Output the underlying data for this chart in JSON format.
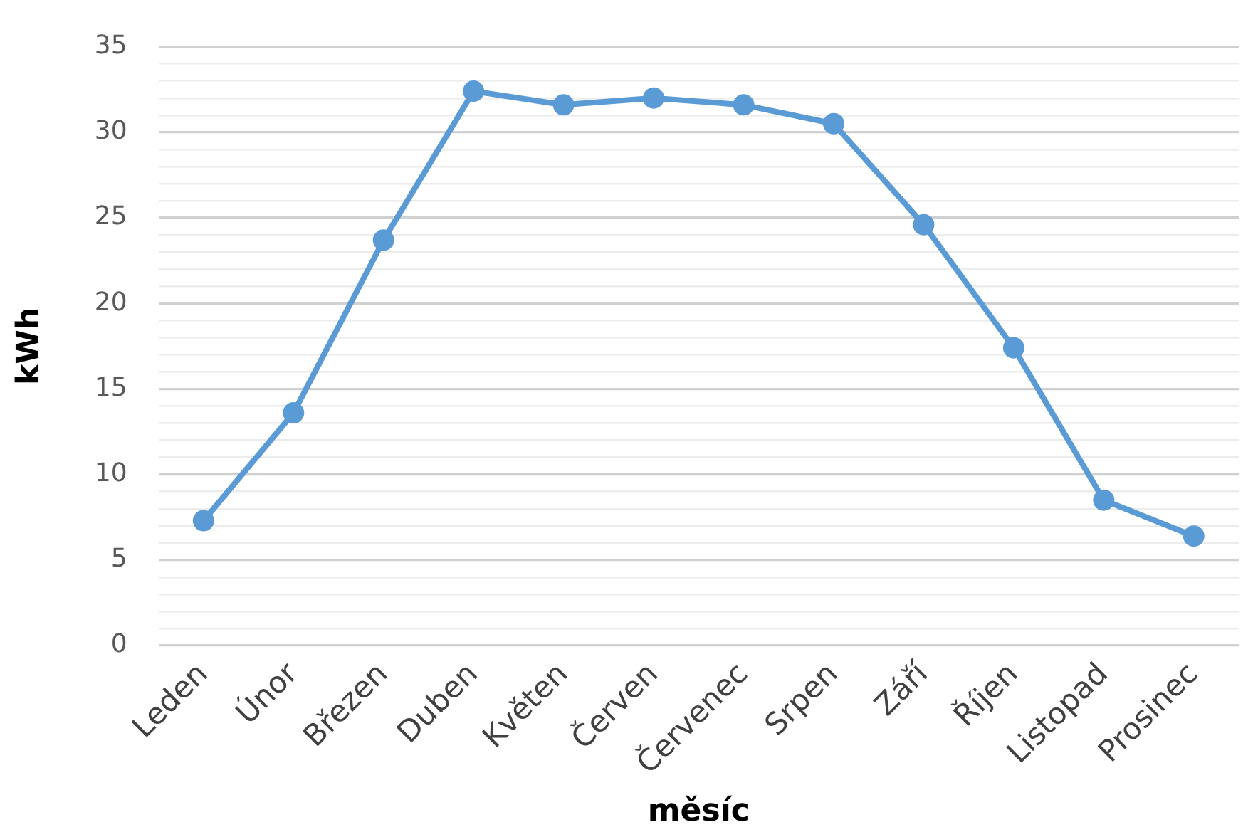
{
  "chart_data": {
    "type": "line",
    "xlabel": "měsíc",
    "ylabel": "kWh",
    "categories": [
      "Leden",
      "Únor",
      "Březen",
      "Duben",
      "Květen",
      "Červen",
      "Červenec",
      "Srpen",
      "Září",
      "Říjen",
      "Listopad",
      "Prosinec"
    ],
    "series": [
      {
        "color": "#5b9bd5",
        "values": [
          7.3,
          13.6,
          23.7,
          32.4,
          31.6,
          32.0,
          31.6,
          30.5,
          24.6,
          17.4,
          8.5,
          6.4
        ]
      }
    ],
    "ylim": [
      0,
      35
    ],
    "yticks": [
      0,
      {
        "value": 1,
        "label": null
      },
      {
        "value": 2,
        "label": null
      },
      {
        "value": 3,
        "label": null
      },
      {
        "value": 4,
        "label": null
      },
      5,
      {
        "value": 6,
        "label": null
      },
      {
        "value": 7,
        "label": null
      },
      {
        "value": 8,
        "label": null
      },
      {
        "value": 9,
        "label": null
      },
      10,
      {
        "value": 11,
        "label": null
      },
      {
        "value": 12,
        "label": null
      },
      {
        "value": 13,
        "label": null
      },
      {
        "value": 14,
        "label": null
      },
      15,
      {
        "value": 16,
        "label": null
      },
      {
        "value": 17,
        "label": null
      },
      {
        "value": 18,
        "label": null
      },
      {
        "value": 19,
        "label": null
      },
      20,
      {
        "value": 21,
        "label": null
      },
      {
        "value": 22,
        "label": null
      },
      {
        "value": 23,
        "label": null
      },
      {
        "value": 24,
        "label": null
      },
      25,
      {
        "value": 26,
        "label": null
      },
      {
        "value": 27,
        "label": null
      },
      {
        "value": 28,
        "label": null
      },
      {
        "value": 29,
        "label": null
      },
      30,
      {
        "value": 31,
        "label": null
      },
      {
        "value": 32,
        "label": null
      },
      {
        "value": 33,
        "label": null
      },
      {
        "value": 34,
        "label": null
      },
      35
    ],
    "grid": "y",
    "legend": false,
    "marker": "circle",
    "line_style": "solid"
  }
}
